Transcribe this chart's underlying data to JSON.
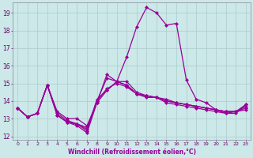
{
  "x": [
    0,
    1,
    2,
    3,
    4,
    5,
    6,
    7,
    8,
    9,
    10,
    11,
    12,
    13,
    14,
    15,
    16,
    17,
    18,
    19,
    20,
    21,
    22,
    23
  ],
  "lines": [
    {
      "y": [
        13.6,
        13.1,
        13.3,
        14.9,
        13.2,
        12.8,
        12.7,
        12.4,
        14.0,
        15.3,
        15.1,
        14.9,
        14.4,
        14.3,
        14.2,
        14.1,
        13.9,
        13.8,
        13.7,
        13.6,
        13.5,
        13.4,
        13.4,
        13.5
      ]
    },
    {
      "y": [
        13.6,
        13.1,
        13.3,
        14.9,
        13.4,
        13.0,
        13.0,
        12.6,
        13.9,
        14.6,
        15.1,
        14.9,
        14.4,
        14.2,
        14.2,
        14.0,
        13.9,
        13.8,
        13.7,
        13.6,
        13.5,
        13.4,
        13.4,
        13.7
      ]
    },
    {
      "y": [
        13.6,
        13.1,
        13.3,
        14.9,
        13.2,
        12.8,
        12.7,
        12.5,
        14.0,
        14.7,
        15.0,
        14.8,
        14.4,
        14.3,
        14.2,
        13.9,
        13.8,
        13.7,
        13.6,
        13.5,
        13.4,
        13.3,
        13.4,
        13.6
      ]
    },
    {
      "y": [
        13.6,
        13.1,
        13.3,
        14.9,
        13.3,
        12.9,
        12.7,
        12.3,
        14.1,
        14.6,
        15.1,
        15.1,
        14.5,
        14.3,
        14.2,
        14.0,
        13.9,
        13.8,
        13.7,
        13.6,
        13.5,
        13.4,
        13.4,
        13.8
      ]
    },
    {
      "y": [
        13.6,
        13.1,
        13.3,
        14.9,
        13.2,
        12.8,
        12.6,
        12.2,
        13.9,
        15.5,
        15.1,
        16.5,
        18.2,
        19.3,
        19.0,
        18.3,
        18.4,
        15.2,
        14.1,
        13.9,
        13.5,
        13.3,
        13.3,
        13.8
      ]
    }
  ],
  "xlabel": "Windchill (Refroidissement éolien,°C)",
  "xlim_min": -0.5,
  "xlim_max": 23.5,
  "ylim_min": 11.8,
  "ylim_max": 19.6,
  "yticks": [
    12,
    13,
    14,
    15,
    16,
    17,
    18,
    19
  ],
  "xticks": [
    0,
    1,
    2,
    3,
    4,
    5,
    6,
    7,
    8,
    9,
    10,
    11,
    12,
    13,
    14,
    15,
    16,
    17,
    18,
    19,
    20,
    21,
    22,
    23
  ],
  "bg_color": "#cce8e8",
  "grid_color": "#aacccc",
  "line_color": "#990099",
  "markersize": 2.5,
  "linewidth": 0.9
}
